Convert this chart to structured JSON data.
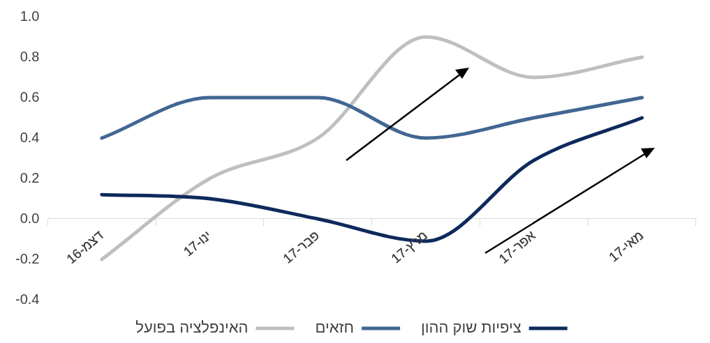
{
  "chart_data": {
    "type": "line",
    "categories": [
      "דצמ-16",
      "ינו-17",
      "פבר-17",
      "מרץ-17",
      "אפר-17",
      "מאי-17"
    ],
    "series": [
      {
        "name": "ציפיות שוק ההון",
        "color": "#0d2a5c",
        "values": [
          0.12,
          0.1,
          0.0,
          -0.11,
          0.29,
          0.5
        ]
      },
      {
        "name": "חזאים",
        "color": "#416792",
        "values": [
          0.4,
          0.6,
          0.6,
          0.4,
          0.5,
          0.6
        ]
      },
      {
        "name": "האינפלציה בפועל",
        "color": "#bfbfbf",
        "values": [
          -0.2,
          0.2,
          0.4,
          0.9,
          0.7,
          0.8
        ]
      }
    ],
    "ylim": [
      -0.4,
      1.0
    ],
    "yticks": [
      -0.4,
      -0.2,
      {
        "value": 0,
        "label": "0.0"
      },
      0.2,
      0.4,
      0.6,
      0.8,
      {
        "value": 1,
        "label": "1.0"
      }
    ],
    "grid": false,
    "legend": "bottom"
  }
}
